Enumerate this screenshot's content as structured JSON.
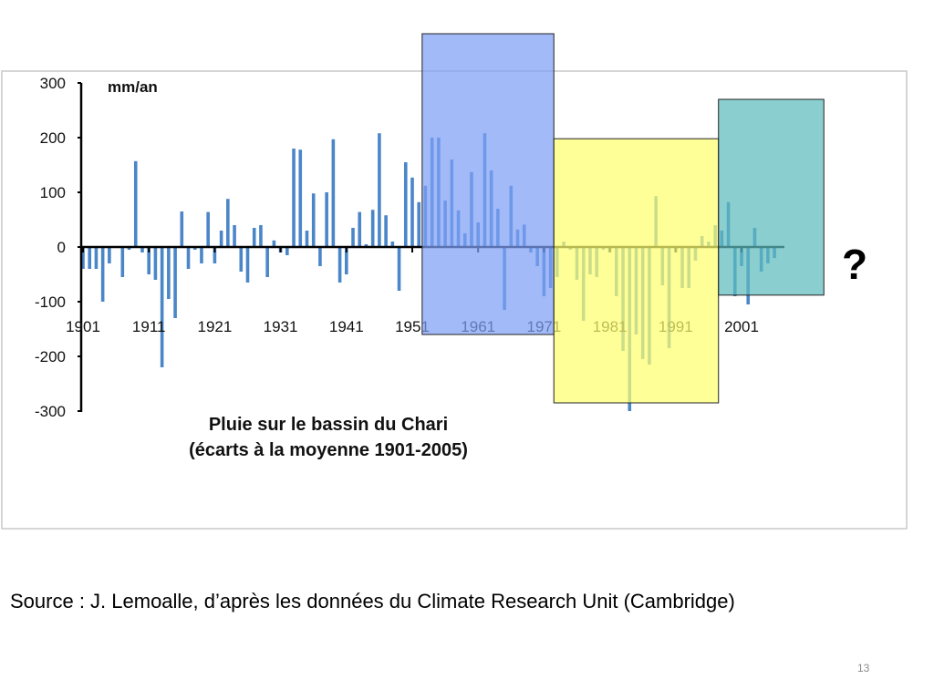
{
  "slide": {
    "number": "13"
  },
  "source_caption": "Source : J. Lemoalle, d’après les données du Climate Research Unit (Cambridge)",
  "chart_data": {
    "type": "bar",
    "title": "Pluie sur le bassin du Chari",
    "subtitle": "(écarts à la moyenne 1901-2005)",
    "ylabel": "mm/an",
    "xlabel": "",
    "ylim": [
      -300,
      300
    ],
    "yticks": [
      "300",
      "200",
      "100",
      "0",
      "-100",
      "-200",
      "-300"
    ],
    "xticks": [
      "1901",
      "1911",
      "1921",
      "1931",
      "1941",
      "1951",
      "1961",
      "1971",
      "1981",
      "1991",
      "2001"
    ],
    "x_start": 1901,
    "x_end": 2006,
    "bar_color": "#4a86c8",
    "values": [
      -40,
      -40,
      -40,
      -100,
      -30,
      0,
      -55,
      -5,
      157,
      -10,
      -50,
      -60,
      -220,
      -95,
      -130,
      65,
      -40,
      -5,
      -30,
      64,
      -30,
      30,
      88,
      40,
      -45,
      -65,
      35,
      40,
      -55,
      12,
      -10,
      -15,
      180,
      178,
      30,
      98,
      -35,
      100,
      197,
      -65,
      -50,
      35,
      64,
      5,
      68,
      208,
      58,
      10,
      -80,
      155,
      127,
      82,
      112,
      200,
      200,
      85,
      160,
      67,
      25,
      137,
      45,
      208,
      140,
      70,
      -115,
      112,
      32,
      41,
      -10,
      -35,
      -90,
      -75,
      -55,
      10,
      -5,
      -60,
      -135,
      -50,
      -55,
      -5,
      -10,
      -90,
      -190,
      -300,
      -160,
      -205,
      -215,
      93,
      -70,
      -185,
      -10,
      -75,
      -75,
      -25,
      20,
      10,
      40,
      30,
      82,
      -90,
      -35,
      -105,
      35,
      -45,
      -30,
      -20
    ],
    "shaded_periods": [
      {
        "color": "#7ea0f5",
        "years": [
          1953,
          1973
        ],
        "range": [
          -160,
          390
        ]
      },
      {
        "color": "#ffff70",
        "years": [
          1973,
          1998
        ],
        "range": [
          -285,
          198
        ]
      },
      {
        "color": "#5dbbbd",
        "years": [
          1998,
          2014
        ],
        "range": [
          -88,
          270
        ]
      }
    ],
    "annotation": "?"
  }
}
